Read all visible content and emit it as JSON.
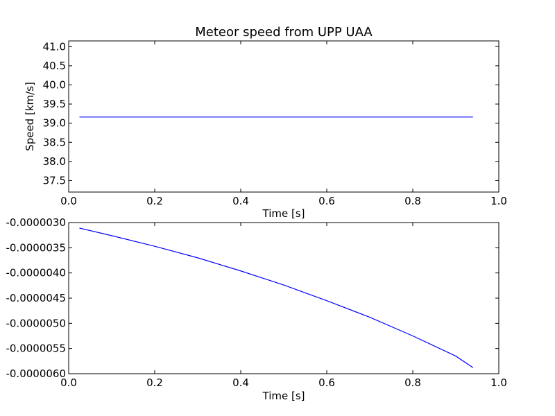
{
  "chart_data": [
    {
      "type": "line",
      "title": "Meteor speed from  UPP UAA",
      "xlabel": "Time [s]",
      "ylabel": "Speed [km/s]",
      "xlim": [
        0.0,
        1.0
      ],
      "ylim": [
        37.2,
        41.15
      ],
      "xticks": [
        0.0,
        0.2,
        0.4,
        0.6,
        0.8,
        1.0
      ],
      "xtick_labels": [
        "0.0",
        "0.2",
        "0.4",
        "0.6",
        "0.8",
        "1.0"
      ],
      "yticks": [
        37.5,
        38.0,
        38.5,
        39.0,
        39.5,
        40.0,
        40.5,
        41.0
      ],
      "ytick_labels": [
        "37.5",
        "38.0",
        "38.5",
        "39.0",
        "39.5",
        "40.0",
        "40.5",
        "41.0"
      ],
      "grid": false,
      "series": [
        {
          "color": "#0000ff",
          "x": [
            0.025,
            0.94
          ],
          "y": [
            39.16,
            39.16
          ]
        }
      ]
    },
    {
      "type": "line",
      "title": "",
      "xlabel": "Time [s]",
      "ylabel": "",
      "xlim": [
        0.0,
        1.0
      ],
      "ylim": [
        -6e-06,
        -3e-06
      ],
      "xticks": [
        0.0,
        0.2,
        0.4,
        0.6,
        0.8,
        1.0
      ],
      "xtick_labels": [
        "0.0",
        "0.2",
        "0.4",
        "0.6",
        "0.8",
        "1.0"
      ],
      "yticks": [
        -3e-06,
        -3.5e-06,
        -4e-06,
        -4.5e-06,
        -5e-06,
        -5.5e-06,
        -6e-06
      ],
      "ytick_labels": [
        "-0.0000030",
        "-0.0000035",
        "-0.0000040",
        "-0.0000045",
        "-0.0000050",
        "-0.0000055",
        "-0.0000060"
      ],
      "grid": false,
      "series": [
        {
          "color": "#0000ff",
          "x": [
            0.025,
            0.1,
            0.2,
            0.3,
            0.4,
            0.5,
            0.6,
            0.7,
            0.8,
            0.9,
            0.94
          ],
          "y": [
            -3.11e-06,
            -3.26e-06,
            -3.47e-06,
            -3.7e-06,
            -3.96e-06,
            -4.24e-06,
            -4.55e-06,
            -4.88e-06,
            -5.25e-06,
            -5.65e-06,
            -5.88e-06
          ]
        }
      ]
    }
  ]
}
